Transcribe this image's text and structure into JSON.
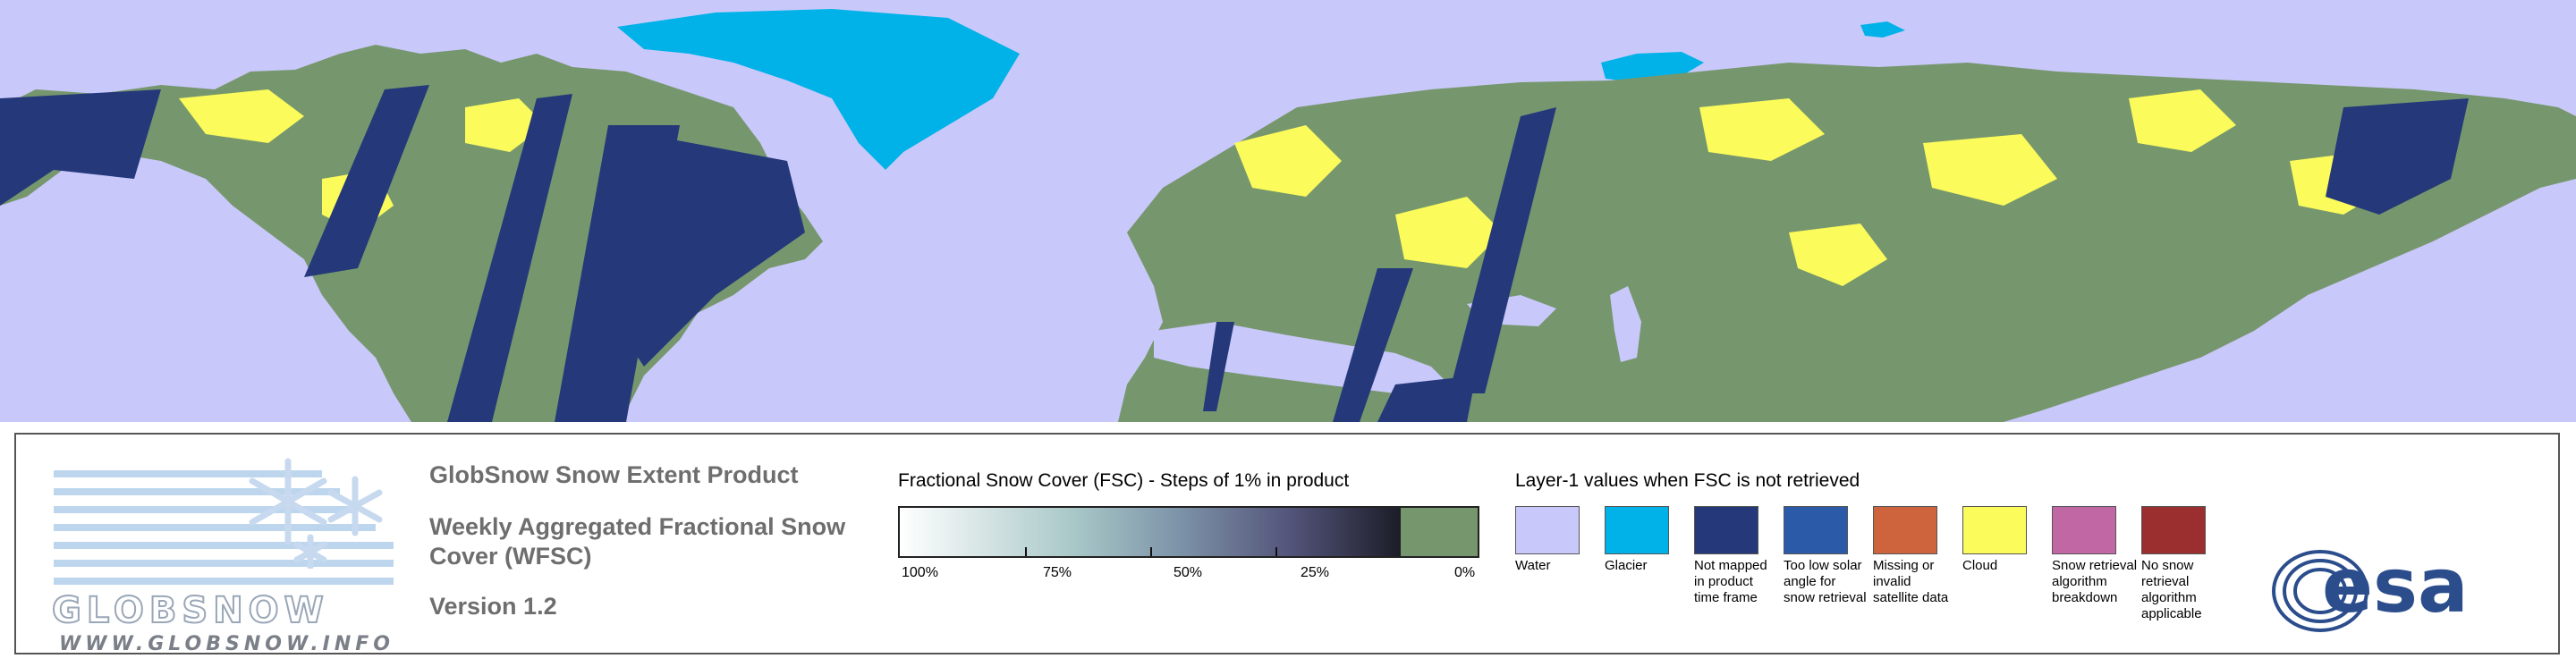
{
  "map": {
    "colors": {
      "water": "#c9c8fb",
      "land": "#76976d",
      "cloud": "#fbfb5c",
      "glacier": "#00b2e8",
      "not_mapped": "#25387a"
    }
  },
  "logo": {
    "wordmark": "GLOBSNOW",
    "url": "WWW.GLOBSNOW.INFO"
  },
  "titles": {
    "product": "GlobSnow Snow Extent Product",
    "subtitle": "Weekly Aggregated Fractional Snow Cover (WFSC)",
    "version": "Version 1.2"
  },
  "fsc_legend": {
    "title": "Fractional Snow Cover (FSC) - Steps of 1% in product",
    "labels": [
      "100%",
      "75%",
      "50%",
      "25%",
      "0%"
    ]
  },
  "layer1_legend": {
    "title": "Layer-1 values when FSC is not retrieved",
    "items": [
      {
        "label": "Water",
        "color": "#c9c8fb"
      },
      {
        "label": "Glacier",
        "color": "#00b2e8"
      },
      {
        "label": "Not mapped in product time frame",
        "color": "#25387a"
      },
      {
        "label": "Too low solar angle for snow retrieval",
        "color": "#2b5aa8"
      },
      {
        "label": "Missing or invalid satellite data",
        "color": "#cd643d"
      },
      {
        "label": "Cloud",
        "color": "#fbfb5c"
      },
      {
        "label": "Snow retrieval algorithm breakdown",
        "color": "#c167a4"
      },
      {
        "label": "No snow retrieval algorithm applicable",
        "color": "#9b2f2f"
      }
    ]
  },
  "esa": {
    "wordmark": "esa"
  }
}
